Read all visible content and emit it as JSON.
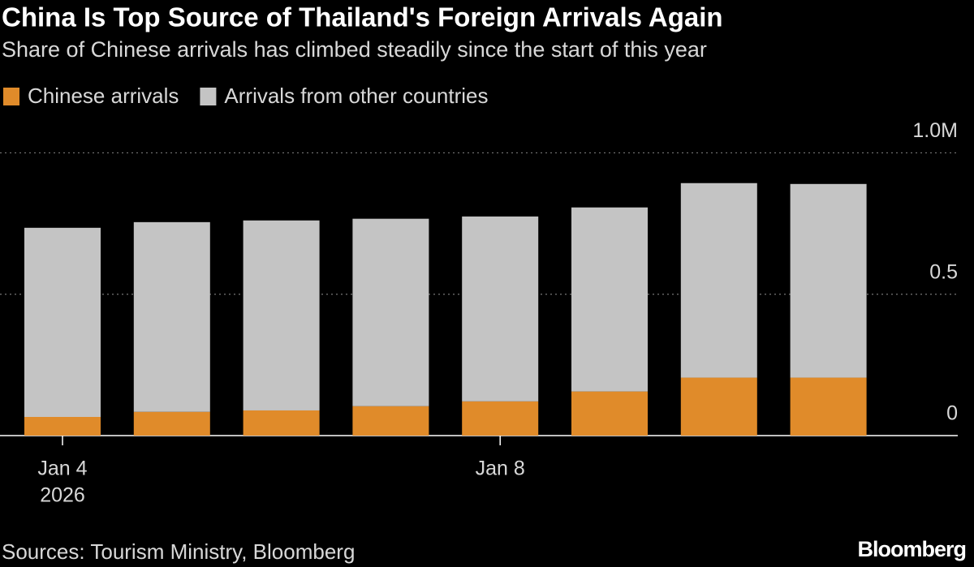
{
  "chart_data": {
    "type": "stacked_bar",
    "title": "China Is Top Source of Thailand's Foreign Arrivals Again",
    "subtitle": "Share of Chinese arrivals has climbed steadily since the start of this year",
    "categories": [
      "Jan 4",
      null,
      null,
      null,
      "Jan 8",
      null,
      null,
      null
    ],
    "x_year_label": "2026",
    "series": [
      {
        "name": "Chinese arrivals",
        "color": "#e08b2a",
        "values": [
          0.066,
          0.084,
          0.089,
          0.104,
          0.121,
          0.156,
          0.205,
          0.205
        ]
      },
      {
        "name": "Arrivals from other countries",
        "color": "#c4c4c4",
        "values": [
          0.669,
          0.671,
          0.672,
          0.663,
          0.654,
          0.651,
          0.688,
          0.685
        ]
      }
    ],
    "ylim": [
      0,
      1.03
    ],
    "yticks": [
      0,
      0.5,
      {
        "value": 1,
        "label": "1.0M"
      }
    ],
    "grid": true,
    "source": "Sources: Tourism Ministry, Bloomberg",
    "brand": "Bloomberg"
  }
}
